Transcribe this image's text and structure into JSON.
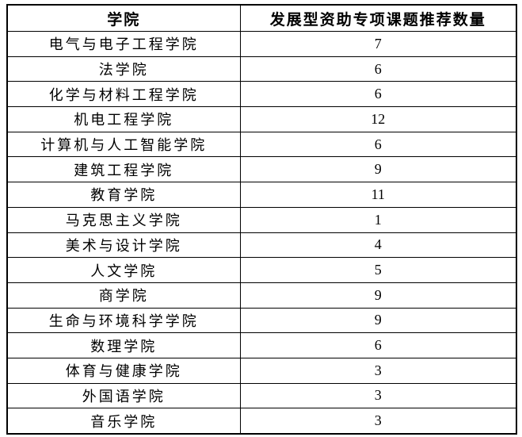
{
  "document": {
    "kind": "table",
    "text_color": "#000000",
    "border_color": "#000000",
    "background_color": "#ffffff"
  },
  "table": {
    "headers": {
      "college": "学院",
      "count": "发展型资助专项课题推荐数量"
    },
    "rows": [
      {
        "college": "电气与电子工程学院",
        "count": "7"
      },
      {
        "college": "法学院",
        "count": "6"
      },
      {
        "college": "化学与材料工程学院",
        "count": "6"
      },
      {
        "college": "机电工程学院",
        "count": "12"
      },
      {
        "college": "计算机与人工智能学院",
        "count": "6"
      },
      {
        "college": "建筑工程学院",
        "count": "9"
      },
      {
        "college": "教育学院",
        "count": "11"
      },
      {
        "college": "马克思主义学院",
        "count": "1"
      },
      {
        "college": "美术与设计学院",
        "count": "4"
      },
      {
        "college": "人文学院",
        "count": "5"
      },
      {
        "college": "商学院",
        "count": "9"
      },
      {
        "college": "生命与环境科学学院",
        "count": "9"
      },
      {
        "college": "数理学院",
        "count": "6"
      },
      {
        "college": "体育与健康学院",
        "count": "3"
      },
      {
        "college": "外国语学院",
        "count": "3"
      },
      {
        "college": "音乐学院",
        "count": "3"
      }
    ]
  }
}
